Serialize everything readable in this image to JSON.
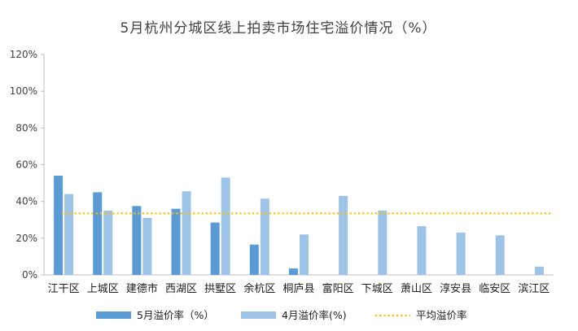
{
  "chart_data": {
    "type": "bar",
    "title": "5月杭州分城区线上拍卖市场住宅溢价情况（%）",
    "categories": [
      "江干区",
      "上城区",
      "建德市",
      "西湖区",
      "拱墅区",
      "余杭区",
      "桐庐县",
      "富阳区",
      "下城区",
      "萧山区",
      "淳安县",
      "临安区",
      "滨江区"
    ],
    "series": [
      {
        "name": "5月溢价率（%）",
        "values": [
          54,
          45,
          37.5,
          36,
          28.5,
          16.5,
          3.5,
          null,
          null,
          null,
          null,
          null,
          null
        ],
        "color": "#5b9bd5"
      },
      {
        "name": "4月溢价率(%)",
        "values": [
          44,
          35,
          31,
          45.5,
          53,
          41.5,
          22,
          43,
          35,
          26.5,
          23,
          21.5,
          4.5
        ],
        "color": "#9dc3e6"
      }
    ],
    "average": {
      "name": "平均溢价率",
      "value": 33.5,
      "color": "#ffc000"
    },
    "ylim": [
      0,
      120
    ],
    "yticks": [
      "0%",
      "20%",
      "40%",
      "60%",
      "80%",
      "100%",
      "120%"
    ],
    "ytick_values": [
      0,
      20,
      40,
      60,
      80,
      100,
      120
    ],
    "grid": false,
    "legend_position": "bottom"
  }
}
